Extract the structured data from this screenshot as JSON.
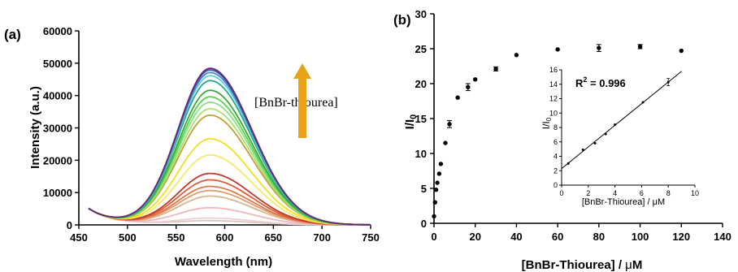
{
  "chart_data": [
    {
      "panel_label": "(a)",
      "type": "line",
      "xlabel": "Wavelength (nm)",
      "ylabel": "Intensity (a.u.)",
      "xlim": [
        450,
        750
      ],
      "ylim": [
        0,
        60000
      ],
      "xticks": [
        450,
        500,
        550,
        600,
        650,
        700,
        750
      ],
      "yticks": [
        0,
        10000,
        20000,
        30000,
        40000,
        50000,
        60000
      ],
      "peak_x": 585,
      "annotation": "[BnBr-thiourea]",
      "arrow_color": "#e8a317",
      "series": [
        {
          "peak": 1200,
          "color": "#d9c7c0"
        },
        {
          "peak": 2000,
          "color": "#ebcfd6"
        },
        {
          "peak": 5200,
          "color": "#f0b6ba"
        },
        {
          "peak": 8800,
          "color": "#d8b58c"
        },
        {
          "peak": 10500,
          "color": "#e09a72"
        },
        {
          "peak": 11800,
          "color": "#d97a4a"
        },
        {
          "peak": 13800,
          "color": "#e05a35"
        },
        {
          "peak": 15800,
          "color": "#c0392b"
        },
        {
          "peak": 21500,
          "color": "#f5e86b"
        },
        {
          "peak": 26500,
          "color": "#f0e020"
        },
        {
          "peak": 33800,
          "color": "#c0a030"
        },
        {
          "peak": 35800,
          "color": "#a8e070"
        },
        {
          "peak": 37800,
          "color": "#88e088"
        },
        {
          "peak": 39500,
          "color": "#5ad04a"
        },
        {
          "peak": 41500,
          "color": "#3aa83a"
        },
        {
          "peak": 44500,
          "color": "#22aa88"
        },
        {
          "peak": 46000,
          "color": "#66ccdd"
        },
        {
          "peak": 47000,
          "color": "#4488cc"
        },
        {
          "peak": 47800,
          "color": "#3355bb"
        },
        {
          "peak": 48300,
          "color": "#6a2a6a"
        }
      ]
    },
    {
      "panel_label": "(b)",
      "type": "scatter",
      "xlabel": "[BnBr-Thiourea] / μM",
      "ylabel": "I/I0",
      "xlim": [
        0,
        140
      ],
      "ylim": [
        0,
        30
      ],
      "xticks": [
        0,
        20,
        40,
        60,
        80,
        100,
        120,
        140
      ],
      "yticks": [
        0,
        5,
        10,
        15,
        20,
        25,
        30
      ],
      "points": [
        {
          "x": 0,
          "y": 1.0,
          "err": 0
        },
        {
          "x": 0.5,
          "y": 3.0,
          "err": 0
        },
        {
          "x": 1.0,
          "y": 4.8,
          "err": 0
        },
        {
          "x": 1.6,
          "y": 5.8,
          "err": 0
        },
        {
          "x": 2.5,
          "y": 7.1,
          "err": 0
        },
        {
          "x": 3.3,
          "y": 8.5,
          "err": 0
        },
        {
          "x": 5.5,
          "y": 11.5,
          "err": 0
        },
        {
          "x": 7.5,
          "y": 14.2,
          "err": 0.5
        },
        {
          "x": 11.5,
          "y": 18.0,
          "err": 0
        },
        {
          "x": 16.5,
          "y": 19.5,
          "err": 0.5
        },
        {
          "x": 20,
          "y": 20.6,
          "err": 0
        },
        {
          "x": 30,
          "y": 22.1,
          "err": 0.3
        },
        {
          "x": 40,
          "y": 24.1,
          "err": 0
        },
        {
          "x": 60,
          "y": 24.9,
          "err": 0
        },
        {
          "x": 80,
          "y": 25.1,
          "err": 0.5
        },
        {
          "x": 100,
          "y": 25.3,
          "err": 0.3
        },
        {
          "x": 120,
          "y": 24.7,
          "err": 0
        }
      ]
    },
    {
      "panel_label": "inset",
      "type": "scatter",
      "xlabel": "[BnBr-Thiourea] / μM",
      "ylabel": "I/I0",
      "xlim": [
        0,
        10
      ],
      "ylim": [
        0,
        16
      ],
      "xticks": [
        0,
        2,
        4,
        6,
        8,
        10
      ],
      "yticks": [
        0,
        2,
        4,
        6,
        8,
        10,
        12,
        14,
        16
      ],
      "r2_label": "R",
      "r2_sup": "2",
      "r2_value": " = 0.996",
      "fit_line": [
        [
          0,
          2.3
        ],
        [
          9.0,
          15.8
        ]
      ],
      "points": [
        {
          "x": 0.5,
          "y": 3.0,
          "err": 0
        },
        {
          "x": 1.6,
          "y": 4.9,
          "err": 0
        },
        {
          "x": 2.5,
          "y": 5.8,
          "err": 0
        },
        {
          "x": 3.3,
          "y": 7.1,
          "err": 0
        },
        {
          "x": 4.0,
          "y": 8.4,
          "err": 0
        },
        {
          "x": 6.1,
          "y": 11.5,
          "err": 0
        },
        {
          "x": 8.0,
          "y": 14.3,
          "err": 0.5
        }
      ]
    }
  ]
}
